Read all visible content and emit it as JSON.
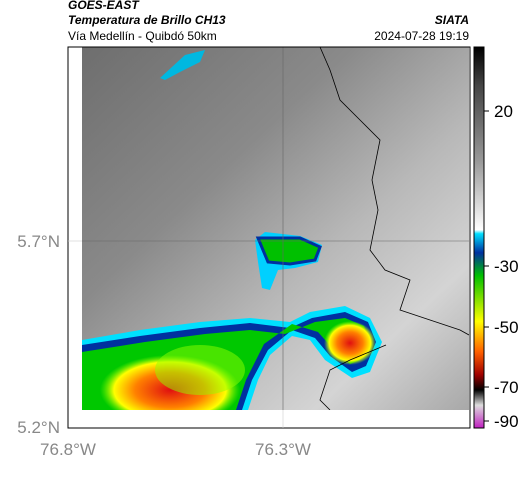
{
  "header": {
    "source": "GOES-EAST",
    "title": "Temperatura de Brillo CH13",
    "brand": "SIATA",
    "subtitle": "Vía Medellín - Quibdó 50km",
    "timestamp": "2024-07-28 19:19"
  },
  "map": {
    "lat_labels": [
      "5.7°N",
      "5.2°N"
    ],
    "lon_labels": [
      "76.8°W",
      "76.3°W"
    ]
  },
  "colorbar": {
    "tick_labels": [
      "20",
      "-30",
      "-50",
      "-70",
      "-90"
    ]
  }
}
